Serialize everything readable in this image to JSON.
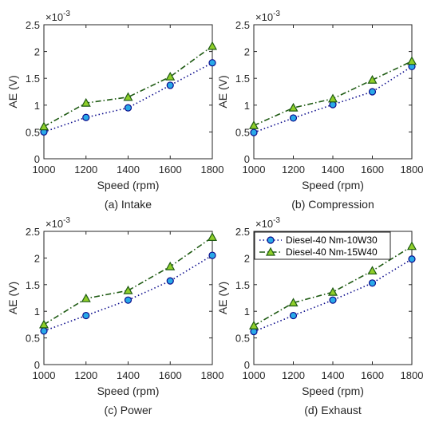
{
  "chart_data": [
    {
      "type": "line",
      "caption": "(a) Intake",
      "xlabel": "Speed (rpm)",
      "ylabel": "AE (V)",
      "y_multiplier": "×10",
      "y_multiplier_exp": "-3",
      "x": [
        1000,
        1200,
        1400,
        1600,
        1800
      ],
      "xlim": [
        1000,
        1800
      ],
      "ylim": [
        0,
        2.5
      ],
      "xticks": [
        "1000",
        "1200",
        "1400",
        "1600",
        "1800"
      ],
      "yticks": [
        "0",
        "0.5",
        "1",
        "1.5",
        "2",
        "2.5"
      ],
      "series": [
        {
          "name": "Diesel-40 Nm-10W30",
          "values": [
            0.5,
            0.77,
            0.95,
            1.37,
            1.79
          ]
        },
        {
          "name": "Diesel-40 Nm-15W40",
          "values": [
            0.6,
            1.04,
            1.15,
            1.53,
            2.1
          ]
        }
      ],
      "legend": null
    },
    {
      "type": "line",
      "caption": "(b) Compression",
      "xlabel": "Speed (rpm)",
      "ylabel": "AE (V)",
      "y_multiplier": "×10",
      "y_multiplier_exp": "-3",
      "x": [
        1000,
        1200,
        1400,
        1600,
        1800
      ],
      "xlim": [
        1000,
        1800
      ],
      "ylim": [
        0,
        2.5
      ],
      "xticks": [
        "1000",
        "1200",
        "1400",
        "1600",
        "1800"
      ],
      "yticks": [
        "0",
        "0.5",
        "1",
        "1.5",
        "2",
        "2.5"
      ],
      "series": [
        {
          "name": "Diesel-40 Nm-10W30",
          "values": [
            0.49,
            0.76,
            1.01,
            1.25,
            1.72
          ]
        },
        {
          "name": "Diesel-40 Nm-15W40",
          "values": [
            0.62,
            0.95,
            1.12,
            1.47,
            1.82
          ]
        }
      ],
      "legend": null
    },
    {
      "type": "line",
      "caption": "(c) Power",
      "xlabel": "Speed (rpm)",
      "ylabel": "AE (V)",
      "y_multiplier": "×10",
      "y_multiplier_exp": "-3",
      "x": [
        1000,
        1200,
        1400,
        1600,
        1800
      ],
      "xlim": [
        1000,
        1800
      ],
      "ylim": [
        0,
        2.5
      ],
      "xticks": [
        "1000",
        "1200",
        "1400",
        "1600",
        "1800"
      ],
      "yticks": [
        "0",
        "0.5",
        "1",
        "1.5",
        "2",
        "2.5"
      ],
      "series": [
        {
          "name": "Diesel-40 Nm-10W30",
          "values": [
            0.63,
            0.92,
            1.21,
            1.57,
            2.05
          ]
        },
        {
          "name": "Diesel-40 Nm-15W40",
          "values": [
            0.75,
            1.24,
            1.39,
            1.84,
            2.39
          ]
        }
      ],
      "legend": null
    },
    {
      "type": "line",
      "caption": "(d) Exhaust",
      "xlabel": "Speed (rpm)",
      "ylabel": "AE (V)",
      "y_multiplier": "×10",
      "y_multiplier_exp": "-3",
      "x": [
        1000,
        1200,
        1400,
        1600,
        1800
      ],
      "xlim": [
        1000,
        1800
      ],
      "ylim": [
        0,
        2.5
      ],
      "xticks": [
        "1000",
        "1200",
        "1400",
        "1600",
        "1800"
      ],
      "yticks": [
        "0",
        "0.5",
        "1",
        "1.5",
        "2",
        "2.5"
      ],
      "series": [
        {
          "name": "Diesel-40 Nm-10W30",
          "values": [
            0.62,
            0.92,
            1.21,
            1.53,
            1.98
          ]
        },
        {
          "name": "Diesel-40 Nm-15W40",
          "values": [
            0.73,
            1.16,
            1.36,
            1.76,
            2.22
          ]
        }
      ],
      "legend": "top-left"
    }
  ],
  "style": {
    "series_colors": [
      "#0b0b8c",
      "#1f5b13"
    ],
    "marker_fills": [
      "#29a9e8",
      "#8fcf2a"
    ],
    "markers": [
      "circle",
      "triangle"
    ],
    "line_styles": [
      "dotted",
      "dash-dot"
    ]
  }
}
